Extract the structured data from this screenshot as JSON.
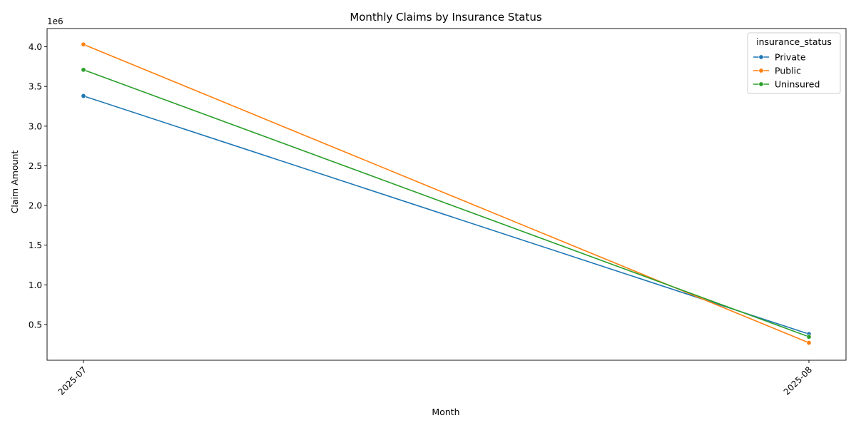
{
  "chart_data": {
    "type": "line",
    "title": "Monthly Claims by Insurance Status",
    "xlabel": "Month",
    "ylabel": "Claim Amount",
    "y_offset_label": "1e6",
    "x": [
      "2025-07",
      "2025-08"
    ],
    "x_tick_rotation": 45,
    "ylim": [
      50000,
      4230000
    ],
    "y_ticks": [
      500000,
      1000000,
      1500000,
      2000000,
      2500000,
      3000000,
      3500000,
      4000000
    ],
    "y_tick_labels": [
      "0.5",
      "1.0",
      "1.5",
      "2.0",
      "2.5",
      "3.0",
      "3.5",
      "4.0"
    ],
    "grid": false,
    "legend": {
      "title": "insurance_status",
      "placement": "top-right"
    },
    "series": [
      {
        "name": "Private",
        "color": "#1f77b4",
        "values": [
          3380000,
          380000
        ]
      },
      {
        "name": "Public",
        "color": "#ff7f0e",
        "values": [
          4030000,
          270000
        ]
      },
      {
        "name": "Uninsured",
        "color": "#2ca02c",
        "values": [
          3710000,
          345000
        ]
      }
    ]
  }
}
